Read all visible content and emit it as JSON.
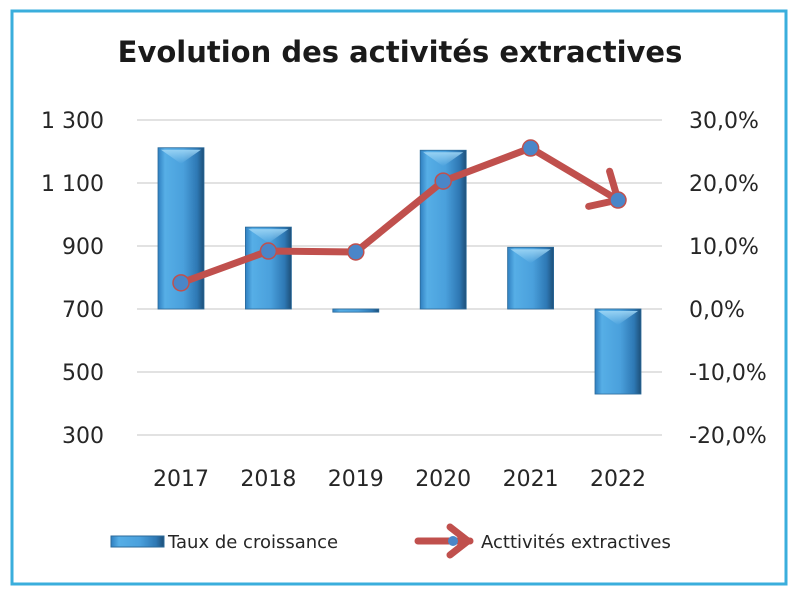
{
  "chart_data": {
    "type": "bar+line",
    "title": "Evolution des activités extractives",
    "categories": [
      "2017",
      "2018",
      "2019",
      "2020",
      "2021",
      "2022"
    ],
    "series": [
      {
        "name": "Taux de croissance",
        "type": "bar",
        "axis": "right",
        "unit": "%",
        "values": [
          25.6,
          13.0,
          -0.5,
          25.2,
          9.8,
          -13.5
        ],
        "color": "#4a9fd8"
      },
      {
        "name": "Acttivités extractives",
        "type": "line",
        "axis": "left",
        "values": [
          783,
          884,
          881,
          1106,
          1211,
          1046
        ],
        "line_color": "#c0504d",
        "marker_color": "#4a86c8",
        "end_arrow": true
      }
    ],
    "left_axis": {
      "ylim": [
        300,
        1300
      ],
      "ticks": [
        1300,
        1100,
        900,
        700,
        500,
        300
      ],
      "tick_labels": [
        "1 300",
        "1 100",
        "900",
        "700",
        "500",
        "300"
      ]
    },
    "right_axis": {
      "ylim": [
        -20,
        30
      ],
      "ticks": [
        30,
        20,
        10,
        0,
        -10,
        -20
      ],
      "tick_labels": [
        "30,0%",
        "20,0%",
        "10,0%",
        "0,0%",
        "-10,0%",
        "-20,0%"
      ]
    },
    "grid": true,
    "legend_position": "bottom",
    "legend": [
      "Taux de croissance",
      "Acttivités extractives"
    ],
    "border_color": "#3aaedc",
    "gridline_color": "#d9d9d9"
  }
}
